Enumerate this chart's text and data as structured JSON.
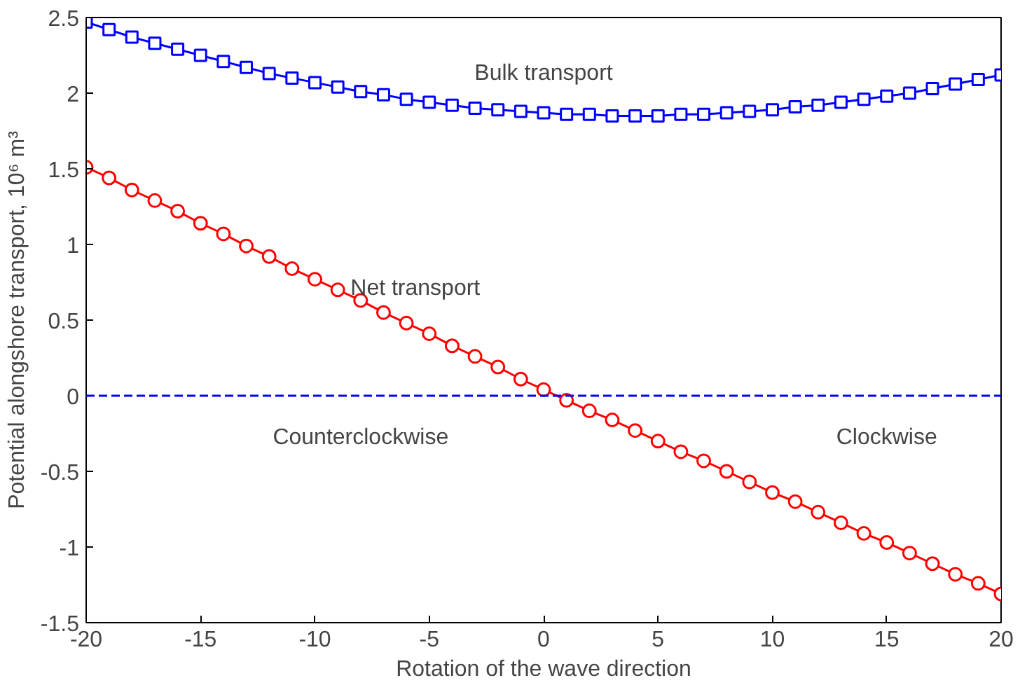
{
  "chart_data": {
    "type": "line",
    "xlabel": "Rotation of the wave direction",
    "ylabel": "Potential alongshore transport, 10⁶ m³",
    "x": [
      -20,
      -19,
      -18,
      -17,
      -16,
      -15,
      -14,
      -13,
      -12,
      -11,
      -10,
      -9,
      -8,
      -7,
      -6,
      -5,
      -4,
      -3,
      -2,
      -1,
      0,
      1,
      2,
      3,
      4,
      5,
      6,
      7,
      8,
      9,
      10,
      11,
      12,
      13,
      14,
      15,
      16,
      17,
      18,
      19,
      20
    ],
    "series": [
      {
        "name": "Bulk transport",
        "color": "#0000ff",
        "marker": "square",
        "values": [
          2.47,
          2.42,
          2.37,
          2.33,
          2.29,
          2.25,
          2.21,
          2.17,
          2.13,
          2.1,
          2.07,
          2.04,
          2.01,
          1.99,
          1.96,
          1.94,
          1.92,
          1.9,
          1.89,
          1.88,
          1.87,
          1.86,
          1.86,
          1.85,
          1.85,
          1.85,
          1.86,
          1.86,
          1.87,
          1.88,
          1.89,
          1.91,
          1.92,
          1.94,
          1.96,
          1.98,
          2.0,
          2.03,
          2.06,
          2.09,
          2.12
        ]
      },
      {
        "name": "Net transport",
        "color": "#ff0000",
        "marker": "circle",
        "values": [
          1.51,
          1.44,
          1.36,
          1.29,
          1.22,
          1.14,
          1.07,
          0.99,
          0.92,
          0.84,
          0.77,
          0.7,
          0.63,
          0.55,
          0.48,
          0.41,
          0.33,
          0.26,
          0.19,
          0.11,
          0.04,
          -0.03,
          -0.1,
          -0.16,
          -0.23,
          -0.3,
          -0.37,
          -0.43,
          -0.5,
          -0.57,
          -0.64,
          -0.7,
          -0.77,
          -0.84,
          -0.91,
          -0.97,
          -1.04,
          -1.11,
          -1.18,
          -1.24,
          -1.31
        ]
      }
    ],
    "ref_lines": [
      {
        "axis": "y",
        "value": 0,
        "color": "#0000ff",
        "line_style": "dashed"
      }
    ],
    "annotations": [
      "Counterclockwise",
      "Clockwise"
    ],
    "xlim": [
      -20,
      20
    ],
    "ylim": [
      -1.5,
      2.5
    ],
    "xticks": [
      -20,
      -15,
      -10,
      -5,
      0,
      5,
      10,
      15,
      20
    ],
    "yticks": [
      -1.5,
      -1,
      -0.5,
      0,
      0.5,
      1,
      1.5,
      2,
      2.5
    ],
    "grid": false,
    "line_style": "solid"
  }
}
